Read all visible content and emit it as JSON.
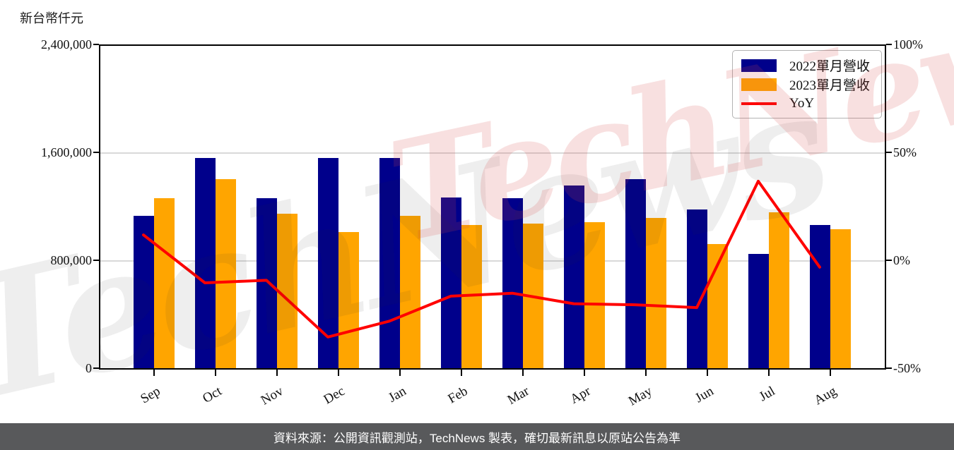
{
  "chart": {
    "unit_label": "新台幣仟元",
    "watermark_text": "TechNews",
    "y_left_tick_labels": [
      "2,400,000",
      "1,600,000",
      "800,000",
      "0"
    ],
    "y_right_tick_labels": [
      "100%",
      "50%",
      "0%",
      "-50%"
    ]
  },
  "legend": {
    "items": [
      {
        "label": "2022單月營收",
        "type": "bar",
        "color": "#00008b"
      },
      {
        "label": "2023單月營收",
        "type": "bar",
        "color": "#ffa500"
      },
      {
        "label": "YoY",
        "type": "line",
        "color": "#ff0000"
      }
    ]
  },
  "footer": {
    "text": "資料來源：公開資訊觀測站，TechNews 製表，確切最新訊息以原站公告為準"
  },
  "colors": {
    "bar_2022": "#00008b",
    "bar_2023": "#ffa500",
    "yoy_line": "#ff0000",
    "grid": "#d9d9d9",
    "axis_frame": "#000000",
    "footer_bg": "#58595b",
    "watermark_pink": "rgba(214,70,70,0.17)",
    "watermark_gray": "rgba(40,40,40,0.08)"
  },
  "chart_data": {
    "type": "bar",
    "subtype": "grouped-bars-with-line",
    "categories": [
      "Sep",
      "Oct",
      "Nov",
      "Dec",
      "Jan",
      "Feb",
      "Mar",
      "Apr",
      "May",
      "Jun",
      "Jul",
      "Aug"
    ],
    "series": [
      {
        "name": "2022單月營收",
        "type": "bar",
        "axis": "left",
        "color": "#00008b",
        "values": [
          1136000,
          1565000,
          1267000,
          1563000,
          1565000,
          1271000,
          1267000,
          1360000,
          1405000,
          1179000,
          853000,
          1067000
        ]
      },
      {
        "name": "2023單月營收",
        "type": "bar",
        "axis": "left",
        "color": "#ffa500",
        "values": [
          1266000,
          1408000,
          1152000,
          1016000,
          1133000,
          1064000,
          1076000,
          1086000,
          1119000,
          926000,
          1159000,
          1035000
        ]
      },
      {
        "name": "YoY",
        "type": "line",
        "axis": "right",
        "color": "#ff0000",
        "values": [
          12,
          -10.3,
          -9.1,
          -35.5,
          -28.1,
          -16.5,
          -15.1,
          -20.0,
          -20.5,
          -21.8,
          37,
          -3
        ]
      }
    ],
    "y_left": {
      "label": "新台幣仟元",
      "min": 0,
      "max": 2400000,
      "ticks": [
        0,
        800000,
        1600000,
        2400000
      ]
    },
    "y_right": {
      "unit": "%",
      "min": -50,
      "max": 100,
      "ticks": [
        -50,
        0,
        50,
        100
      ]
    },
    "grid": "horizontal",
    "legend_position": "upper-right",
    "x_tick_rotation_deg": 30
  }
}
